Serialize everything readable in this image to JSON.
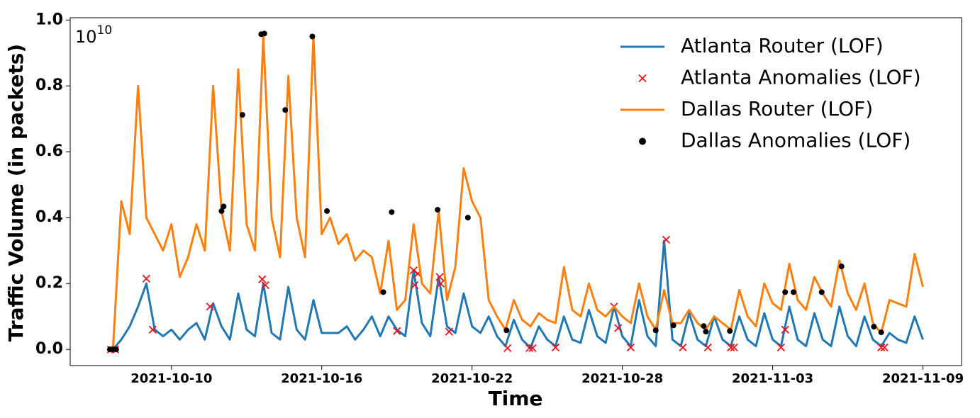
{
  "chart_data": {
    "type": "line",
    "x_label": "Time",
    "y_label": "Traffic Volume (in packets)",
    "y_offset": {
      "base": "10",
      "exponent": "10"
    },
    "xlim": [
      "2021-10-05 23:00",
      "2021-11-10 13:00"
    ],
    "ylim": [
      -0.049,
      1.007
    ],
    "xticks": [
      "2021-10-10",
      "2021-10-16",
      "2021-10-22",
      "2021-10-28",
      "2021-11-03",
      "2021-11-09"
    ],
    "yticks": [
      {
        "value": 0,
        "label": "0.0"
      },
      0.2,
      0.4,
      0.6,
      0.8,
      {
        "value": 1,
        "label": "1.0"
      }
    ],
    "legend": "upper right",
    "x": [
      "2021-10-07 16:00",
      "2021-10-08 00:00",
      "2021-10-08 08:00",
      "2021-10-08 16:00",
      "2021-10-09 00:00",
      "2021-10-09 08:00",
      "2021-10-09 16:00",
      "2021-10-10 00:00",
      "2021-10-10 08:00",
      "2021-10-10 16:00",
      "2021-10-11 00:00",
      "2021-10-11 08:00",
      "2021-10-11 16:00",
      "2021-10-12 00:00",
      "2021-10-12 08:00",
      "2021-10-12 16:00",
      "2021-10-13 00:00",
      "2021-10-13 08:00",
      "2021-10-13 16:00",
      "2021-10-14 00:00",
      "2021-10-14 08:00",
      "2021-10-14 16:00",
      "2021-10-15 00:00",
      "2021-10-15 08:00",
      "2021-10-15 16:00",
      "2021-10-16 00:00",
      "2021-10-16 08:00",
      "2021-10-16 16:00",
      "2021-10-17 00:00",
      "2021-10-17 08:00",
      "2021-10-17 16:00",
      "2021-10-18 00:00",
      "2021-10-18 08:00",
      "2021-10-18 16:00",
      "2021-10-19 00:00",
      "2021-10-19 08:00",
      "2021-10-19 16:00",
      "2021-10-20 00:00",
      "2021-10-20 08:00",
      "2021-10-20 16:00",
      "2021-10-21 00:00",
      "2021-10-21 08:00",
      "2021-10-21 16:00",
      "2021-10-22 00:00",
      "2021-10-22 08:00",
      "2021-10-22 16:00",
      "2021-10-23 00:00",
      "2021-10-23 08:00",
      "2021-10-23 16:00",
      "2021-10-24 00:00",
      "2021-10-24 08:00",
      "2021-10-24 16:00",
      "2021-10-25 00:00",
      "2021-10-25 08:00",
      "2021-10-25 16:00",
      "2021-10-26 00:00",
      "2021-10-26 08:00",
      "2021-10-26 16:00",
      "2021-10-27 00:00",
      "2021-10-27 08:00",
      "2021-10-27 16:00",
      "2021-10-28 00:00",
      "2021-10-28 08:00",
      "2021-10-28 16:00",
      "2021-10-29 00:00",
      "2021-10-29 08:00",
      "2021-10-29 16:00",
      "2021-10-30 00:00",
      "2021-10-30 08:00",
      "2021-10-30 16:00",
      "2021-10-31 00:00",
      "2021-10-31 08:00",
      "2021-10-31 16:00",
      "2021-11-01 00:00",
      "2021-11-01 08:00",
      "2021-11-01 16:00",
      "2021-11-02 00:00",
      "2021-11-02 08:00",
      "2021-11-02 16:00",
      "2021-11-03 00:00",
      "2021-11-03 08:00",
      "2021-11-03 16:00",
      "2021-11-04 00:00",
      "2021-11-04 08:00",
      "2021-11-04 16:00",
      "2021-11-05 00:00",
      "2021-11-05 08:00",
      "2021-11-05 16:00",
      "2021-11-06 00:00",
      "2021-11-06 08:00",
      "2021-11-06 16:00",
      "2021-11-07 00:00",
      "2021-11-07 08:00",
      "2021-11-07 16:00",
      "2021-11-08 00:00",
      "2021-11-08 08:00",
      "2021-11-08 16:00",
      "2021-11-09 00:00"
    ],
    "series": [
      {
        "name": "Atlanta Router (LOF)",
        "kind": "line",
        "color": "#1f77b4",
        "values": [
          0.0,
          0.03,
          0.07,
          0.13,
          0.2,
          0.06,
          0.04,
          0.06,
          0.03,
          0.06,
          0.08,
          0.03,
          0.14,
          0.07,
          0.03,
          0.17,
          0.06,
          0.04,
          0.2,
          0.05,
          0.03,
          0.19,
          0.06,
          0.03,
          0.15,
          0.05,
          0.05,
          0.05,
          0.07,
          0.03,
          0.06,
          0.1,
          0.04,
          0.1,
          0.06,
          0.04,
          0.24,
          0.08,
          0.04,
          0.22,
          0.07,
          0.05,
          0.17,
          0.07,
          0.05,
          0.1,
          0.04,
          0.01,
          0.09,
          0.03,
          0.005,
          0.07,
          0.03,
          0.01,
          0.1,
          0.03,
          0.02,
          0.12,
          0.04,
          0.02,
          0.13,
          0.04,
          0.01,
          0.15,
          0.04,
          0.01,
          0.33,
          0.03,
          0.01,
          0.11,
          0.03,
          0.01,
          0.1,
          0.03,
          0.01,
          0.1,
          0.03,
          0.01,
          0.11,
          0.03,
          0.01,
          0.13,
          0.03,
          0.01,
          0.11,
          0.03,
          0.01,
          0.13,
          0.04,
          0.01,
          0.1,
          0.03,
          0.01,
          0.05,
          0.03,
          0.02,
          0.1,
          0.03
        ]
      },
      {
        "name": "Atlanta Anomalies (LOF)",
        "kind": "scatter",
        "marker": "x",
        "color": "#e8141c",
        "x": [
          "2021-10-07 14:00",
          "2021-10-07 18:00",
          "2021-10-09 00:00",
          "2021-10-09 06:00",
          "2021-10-11 13:00",
          "2021-10-13 15:00",
          "2021-10-13 18:00",
          "2021-10-19 00:00",
          "2021-10-19 16:00",
          "2021-10-19 17:00",
          "2021-10-19 20:00",
          "2021-10-20 17:00",
          "2021-10-20 18:00",
          "2021-10-21 02:00",
          "2021-10-23 10:00",
          "2021-10-24 07:00",
          "2021-10-24 10:00",
          "2021-10-25 08:00",
          "2021-10-27 16:00",
          "2021-10-27 20:00",
          "2021-10-28 08:00",
          "2021-10-29 18:00",
          "2021-10-30 10:00",
          "2021-10-31 10:00",
          "2021-11-01 08:00",
          "2021-11-01 11:00",
          "2021-11-03 08:00",
          "2021-11-03 12:00",
          "2021-11-07 08:00",
          "2021-11-07 11:00"
        ],
        "values": [
          0.0,
          0.0,
          0.215,
          0.06,
          0.13,
          0.213,
          0.195,
          0.056,
          0.24,
          0.195,
          0.23,
          0.22,
          0.2,
          0.054,
          0.004,
          0.004,
          0.004,
          0.006,
          0.13,
          0.065,
          0.006,
          0.333,
          0.006,
          0.006,
          0.006,
          0.006,
          0.006,
          0.06,
          0.006,
          0.006
        ]
      },
      {
        "name": "Dallas Router (LOF)",
        "kind": "line",
        "color": "#ff7f0e",
        "values": [
          0.0,
          0.45,
          0.35,
          0.8,
          0.4,
          0.35,
          0.3,
          0.38,
          0.22,
          0.28,
          0.38,
          0.3,
          0.8,
          0.42,
          0.3,
          0.85,
          0.38,
          0.3,
          0.95,
          0.4,
          0.28,
          0.83,
          0.4,
          0.28,
          0.95,
          0.35,
          0.4,
          0.32,
          0.35,
          0.27,
          0.3,
          0.28,
          0.17,
          0.33,
          0.12,
          0.15,
          0.38,
          0.2,
          0.17,
          0.42,
          0.15,
          0.25,
          0.55,
          0.45,
          0.4,
          0.15,
          0.1,
          0.06,
          0.15,
          0.09,
          0.07,
          0.11,
          0.09,
          0.08,
          0.25,
          0.12,
          0.1,
          0.2,
          0.12,
          0.1,
          0.13,
          0.1,
          0.08,
          0.2,
          0.1,
          0.06,
          0.18,
          0.08,
          0.08,
          0.12,
          0.08,
          0.06,
          0.1,
          0.08,
          0.06,
          0.18,
          0.1,
          0.07,
          0.2,
          0.14,
          0.12,
          0.26,
          0.15,
          0.12,
          0.22,
          0.17,
          0.13,
          0.27,
          0.17,
          0.12,
          0.2,
          0.08,
          0.05,
          0.15,
          0.14,
          0.13,
          0.29,
          0.19
        ]
      },
      {
        "name": "Dallas Anomalies (LOF)",
        "kind": "scatter",
        "marker": "o",
        "color": "#000000",
        "x": [
          "2021-10-07 13:00",
          "2021-10-07 16:00",
          "2021-10-07 19:00",
          "2021-10-12 00:00",
          "2021-10-12 02:00",
          "2021-10-12 20:00",
          "2021-10-13 14:00",
          "2021-10-13 17:00",
          "2021-10-14 13:00",
          "2021-10-15 15:00",
          "2021-10-16 05:00",
          "2021-10-18 11:00",
          "2021-10-18 19:00",
          "2021-10-20 15:00",
          "2021-10-21 20:00",
          "2021-10-23 09:00",
          "2021-10-29 08:00",
          "2021-10-30 01:00",
          "2021-10-31 06:00",
          "2021-10-31 08:00",
          "2021-11-01 07:00",
          "2021-11-03 12:00",
          "2021-11-03 20:00",
          "2021-11-04 23:00",
          "2021-11-05 18:00",
          "2021-11-07 01:00",
          "2021-11-07 08:00"
        ],
        "values": [
          0.0,
          0.0,
          0.0,
          0.42,
          0.434,
          0.712,
          0.957,
          0.959,
          0.727,
          0.95,
          0.42,
          0.174,
          0.417,
          0.424,
          0.4,
          0.058,
          0.058,
          0.073,
          0.071,
          0.054,
          0.056,
          0.174,
          0.174,
          0.174,
          0.252,
          0.069,
          0.052
        ]
      }
    ]
  }
}
